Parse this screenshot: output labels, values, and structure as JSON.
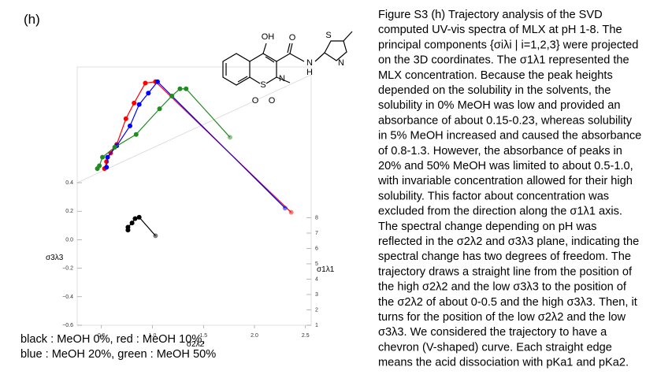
{
  "panel_label": "(h)",
  "structure": {
    "labels": [
      "OH",
      "O",
      "N",
      "H",
      "S",
      "N",
      "S",
      "O",
      "O",
      "N"
    ]
  },
  "chart_data": {
    "type": "line3d",
    "xlabel": "σ1λ1",
    "ylabel": "σ2λ2",
    "zlabel": "σ3λ3",
    "xlim": [
      1,
      8
    ],
    "xticks": [
      1,
      2,
      3,
      4,
      5,
      6,
      7,
      8
    ],
    "ylim": [
      0,
      2.5
    ],
    "yticks": [
      0.5,
      {
        "value": 1,
        "label": "1.0"
      },
      1.5,
      {
        "value": 2,
        "label": "2.0"
      },
      2.5
    ],
    "zlim": [
      -0.6,
      0.4
    ],
    "zticks": [
      {
        "value": -0.6,
        "label": "−0.6"
      },
      {
        "value": -0.4,
        "label": "−0.4"
      },
      {
        "value": -0.2,
        "label": "−0.2"
      },
      {
        "value": 0,
        "label": "0.0"
      },
      0.2,
      0.4
    ],
    "series": [
      {
        "color": "#000000",
        "s1": [
          2,
          2,
          2,
          2,
          2,
          2
        ],
        "s2": [
          0.76,
          0.76,
          0.8,
          0.83,
          0.87,
          1.03
        ],
        "s3": [
          -0.04,
          -0.02,
          0.01,
          0.04,
          0.05,
          -0.08
        ]
      },
      {
        "color": "#ff0000",
        "s1": [
          6,
          6,
          6,
          6,
          6,
          6,
          6,
          6,
          7.7
        ],
        "s2": [
          0.53,
          0.55,
          0.59,
          0.65,
          0.74,
          0.82,
          0.93,
          1.03,
          2.36
        ],
        "s3": [
          -0.04,
          0.01,
          0.07,
          0.13,
          0.31,
          0.42,
          0.56,
          0.57,
          -0.53
        ]
      },
      {
        "color": "#0000ff",
        "s1": [
          6,
          6,
          6,
          6,
          6,
          6,
          6,
          7.7
        ],
        "s2": [
          0.55,
          0.56,
          0.65,
          0.78,
          0.87,
          0.96,
          1.05,
          2.3
        ],
        "s3": [
          -0.03,
          0.04,
          0.12,
          0.26,
          0.41,
          0.49,
          0.57,
          -0.5
        ]
      },
      {
        "color": "#228b22",
        "s1": [
          6,
          6,
          6,
          6,
          6,
          6,
          6,
          6,
          6,
          6
        ],
        "s2": [
          0.46,
          0.48,
          0.51,
          0.63,
          0.84,
          1.07,
          1.19,
          1.27,
          1.33,
          1.76
        ],
        "s3": [
          -0.04,
          -0.02,
          0.04,
          0.11,
          0.2,
          0.38,
          0.47,
          0.52,
          0.52,
          0.18
        ]
      }
    ]
  },
  "legend_note": [
    "black : MeOH 0%, red : MeOH 10%,",
    "blue : MeOH 20%, green : MeOH 50%"
  ],
  "caption": [
    "Figure S3 (h) Trajectory analysis of the SVD",
    "computed UV-vis spectra of MLX at pH 1-8. The",
    "principal components {σiλi | i=1,2,3} were projected",
    "on the 3D coordinates. The σ1λ1 represented the",
    "MLX concentration. Because the peak heights",
    "depended on the solubility in the solvents, the",
    "solubility in 0% MeOH was low and provided an",
    "absorbance of about 0.15-0.23, whereas solubility",
    "in 5% MeOH increased and caused the absorbance",
    "of 0.8-1.3. However, the absorbance of peaks in",
    "20% and 50% MeOH was limited to about 0.5-1.0,",
    "with invariable concentration allowed for their high",
    "solubility. This factor about concentration was",
    "excluded from the direction along the σ1λ1 axis.",
    "The spectral change depending on pH was",
    "reflected in the σ2λ2 and σ3λ3 plane, indicating the",
    "spectral change has two degrees of freedom. The",
    "trajectory draws a straight line from the position of",
    "the high σ2λ2 and the low σ3λ3 to the position of",
    "the σ2λ2 of about 0-0.5 and the high σ3λ3. Then, it",
    "turns for the position of the low σ2λ2 and the low",
    "σ3λ3. We considered the trajectory to have a",
    "chevron (V-shaped) curve. Each straight edge",
    "means the acid dissociation with pKa1 and pKa2."
  ]
}
